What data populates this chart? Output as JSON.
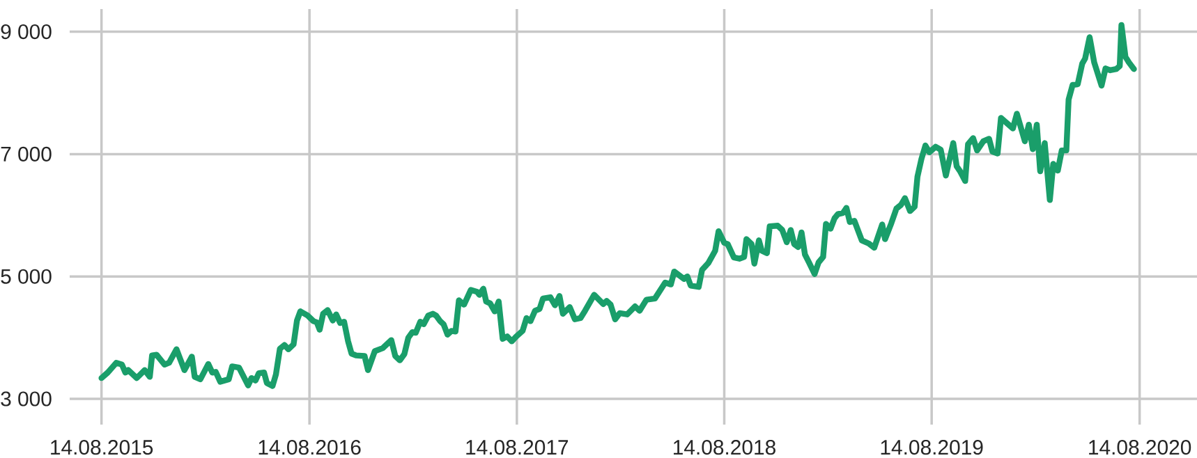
{
  "chart_data": {
    "type": "line",
    "color": "#1a9e6a",
    "grid": true,
    "xlim": [
      "2015-06-19",
      "2020-11-23"
    ],
    "ylim": [
      2750,
      9200
    ],
    "xticks": [
      {
        "value": "2015-08-14",
        "label": "14.08.2015"
      },
      {
        "value": "2016-08-14",
        "label": "14.08.2016"
      },
      {
        "value": "2017-08-14",
        "label": "14.08.2017"
      },
      {
        "value": "2018-08-14",
        "label": "14.08.2018"
      },
      {
        "value": "2019-08-14",
        "label": "14.08.2019"
      },
      {
        "value": "2020-08-14",
        "label": "14.08.2020"
      }
    ],
    "yticks": [
      {
        "value": 3000,
        "label": "3 000"
      },
      {
        "value": 5000,
        "label": "5 000"
      },
      {
        "value": 7000,
        "label": "7 000"
      },
      {
        "value": 9000,
        "label": "9 000"
      }
    ],
    "x": [
      "2015-08-14",
      "2015-08-25",
      "2015-09-09",
      "2015-09-19",
      "2015-09-25",
      "2015-09-30",
      "2015-10-15",
      "2015-10-29",
      "2015-11-07",
      "2015-11-11",
      "2015-11-19",
      "2015-12-03",
      "2015-12-11",
      "2015-12-24",
      "2016-01-07",
      "2016-01-20",
      "2016-01-25",
      "2016-02-04",
      "2016-02-18",
      "2016-02-25",
      "2016-03-02",
      "2016-03-10",
      "2016-03-25",
      "2016-03-31",
      "2016-04-12",
      "2016-04-28",
      "2016-05-04",
      "2016-05-11",
      "2016-05-17",
      "2016-05-26",
      "2016-05-31",
      "2016-06-10",
      "2016-06-16",
      "2016-06-23",
      "2016-07-01",
      "2016-07-08",
      "2016-07-17",
      "2016-07-23",
      "2016-07-29",
      "2016-08-11",
      "2016-08-21",
      "2016-08-27",
      "2016-09-01",
      "2016-09-07",
      "2016-09-15",
      "2016-09-24",
      "2016-09-30",
      "2016-10-07",
      "2016-10-14",
      "2016-10-21",
      "2016-10-27",
      "2016-11-04",
      "2016-11-19",
      "2016-11-25",
      "2016-12-07",
      "2016-12-21",
      "2017-01-05",
      "2017-01-12",
      "2017-01-20",
      "2017-01-28",
      "2017-02-04",
      "2017-02-11",
      "2017-02-17",
      "2017-02-25",
      "2017-03-03",
      "2017-03-11",
      "2017-03-19",
      "2017-03-25",
      "2017-04-01",
      "2017-04-07",
      "2017-04-14",
      "2017-04-21",
      "2017-04-28",
      "2017-05-04",
      "2017-05-13",
      "2017-05-25",
      "2017-06-05",
      "2017-06-09",
      "2017-06-16",
      "2017-06-21",
      "2017-06-28",
      "2017-07-06",
      "2017-07-13",
      "2017-07-20",
      "2017-07-28",
      "2017-08-05",
      "2017-08-13",
      "2017-08-24",
      "2017-08-31",
      "2017-09-07",
      "2017-09-15",
      "2017-09-23",
      "2017-09-29",
      "2017-10-12",
      "2017-10-20",
      "2017-10-28",
      "2017-11-03",
      "2017-11-15",
      "2017-11-24",
      "2017-12-04",
      "2017-12-12",
      "2017-12-28",
      "2018-01-13",
      "2018-01-19",
      "2018-01-26",
      "2018-02-03",
      "2018-02-11",
      "2018-02-24",
      "2018-03-10",
      "2018-03-18",
      "2018-03-30",
      "2018-04-14",
      "2018-05-02",
      "2018-05-12",
      "2018-05-18",
      "2018-06-04",
      "2018-06-10",
      "2018-06-16",
      "2018-06-30",
      "2018-07-06",
      "2018-07-17",
      "2018-07-29",
      "2018-08-04",
      "2018-08-14",
      "2018-08-20",
      "2018-08-31",
      "2018-09-10",
      "2018-09-18",
      "2018-09-22",
      "2018-10-01",
      "2018-10-06",
      "2018-10-14",
      "2018-10-19",
      "2018-10-28",
      "2018-11-02",
      "2018-11-16",
      "2018-11-24",
      "2018-12-02",
      "2018-12-09",
      "2018-12-15",
      "2018-12-22",
      "2018-12-28",
      "2019-01-03",
      "2019-01-10",
      "2019-01-20",
      "2019-01-27",
      "2019-02-04",
      "2019-02-09",
      "2019-02-17",
      "2019-02-24",
      "2019-03-02",
      "2019-03-11",
      "2019-03-17",
      "2019-03-23",
      "2019-03-31",
      "2019-04-13",
      "2019-04-25",
      "2019-05-05",
      "2019-05-19",
      "2019-05-24",
      "2019-06-04",
      "2019-06-13",
      "2019-06-21",
      "2019-06-28",
      "2019-07-07",
      "2019-07-15",
      "2019-07-20",
      "2019-07-27",
      "2019-08-03",
      "2019-08-10",
      "2019-08-21",
      "2019-08-30",
      "2019-09-08",
      "2019-09-21",
      "2019-09-27",
      "2019-10-03",
      "2019-10-12",
      "2019-10-17",
      "2019-10-26",
      "2019-11-02",
      "2019-11-13",
      "2019-11-23",
      "2019-11-29",
      "2019-12-08",
      "2019-12-14",
      "2020-01-04",
      "2020-01-11",
      "2020-01-25",
      "2020-02-01",
      "2020-02-08",
      "2020-02-15",
      "2020-02-21",
      "2020-02-29",
      "2020-03-09",
      "2020-03-15",
      "2020-03-23",
      "2020-03-30",
      "2020-04-07",
      "2020-04-11",
      "2020-04-18",
      "2020-04-27",
      "2020-05-05",
      "2020-05-10",
      "2020-05-18",
      "2020-05-26",
      "2020-06-08",
      "2020-06-15",
      "2020-06-23",
      "2020-07-04",
      "2020-07-10",
      "2020-07-13",
      "2020-07-20",
      "2020-07-26",
      "2020-08-04"
    ],
    "values": [
      3340,
      3430,
      3590,
      3560,
      3430,
      3470,
      3340,
      3470,
      3360,
      3710,
      3720,
      3560,
      3590,
      3810,
      3470,
      3690,
      3360,
      3320,
      3570,
      3430,
      3440,
      3280,
      3320,
      3530,
      3510,
      3220,
      3340,
      3300,
      3420,
      3430,
      3260,
      3210,
      3400,
      3820,
      3880,
      3810,
      3890,
      4280,
      4430,
      4360,
      4270,
      4250,
      4130,
      4390,
      4450,
      4280,
      4380,
      4240,
      4260,
      3940,
      3740,
      3710,
      3700,
      3470,
      3780,
      3830,
      3960,
      3700,
      3630,
      3730,
      4000,
      4090,
      4080,
      4260,
      4220,
      4360,
      4390,
      4360,
      4270,
      4220,
      4050,
      4110,
      4100,
      4610,
      4540,
      4780,
      4750,
      4700,
      4800,
      4590,
      4560,
      4430,
      4590,
      3980,
      4020,
      3940,
      4020,
      4110,
      4320,
      4270,
      4440,
      4470,
      4640,
      4660,
      4530,
      4680,
      4390,
      4500,
      4300,
      4320,
      4440,
      4700,
      4550,
      4600,
      4540,
      4300,
      4400,
      4380,
      4510,
      4440,
      4620,
      4640,
      4900,
      4870,
      5080,
      4960,
      5000,
      4850,
      4830,
      5110,
      5220,
      5420,
      5740,
      5550,
      5530,
      5310,
      5290,
      5320,
      5610,
      5530,
      5210,
      5590,
      5420,
      5380,
      5820,
      5830,
      5760,
      5560,
      5760,
      5530,
      5480,
      5720,
      5360,
      5230,
      5040,
      5230,
      5320,
      5860,
      5780,
      5950,
      6020,
      6040,
      6120,
      5890,
      5910,
      5590,
      5540,
      5470,
      5850,
      5610,
      5870,
      6110,
      6170,
      6280,
      6070,
      6140,
      6630,
      6920,
      7140,
      7030,
      7120,
      7070,
      6650,
      7180,
      6800,
      6720,
      6560,
      7160,
      7260,
      7060,
      7210,
      7250,
      7040,
      7010,
      7590,
      7420,
      7660,
      7210,
      7480,
      7080,
      7480,
      6720,
      7180,
      6250,
      6840,
      6730,
      7060,
      7060,
      7890,
      8130,
      8140,
      8480,
      8560,
      8910,
      8500,
      8120,
      8400,
      8370,
      8390,
      8440,
      9110,
      8590,
      8500,
      8390
    ]
  }
}
